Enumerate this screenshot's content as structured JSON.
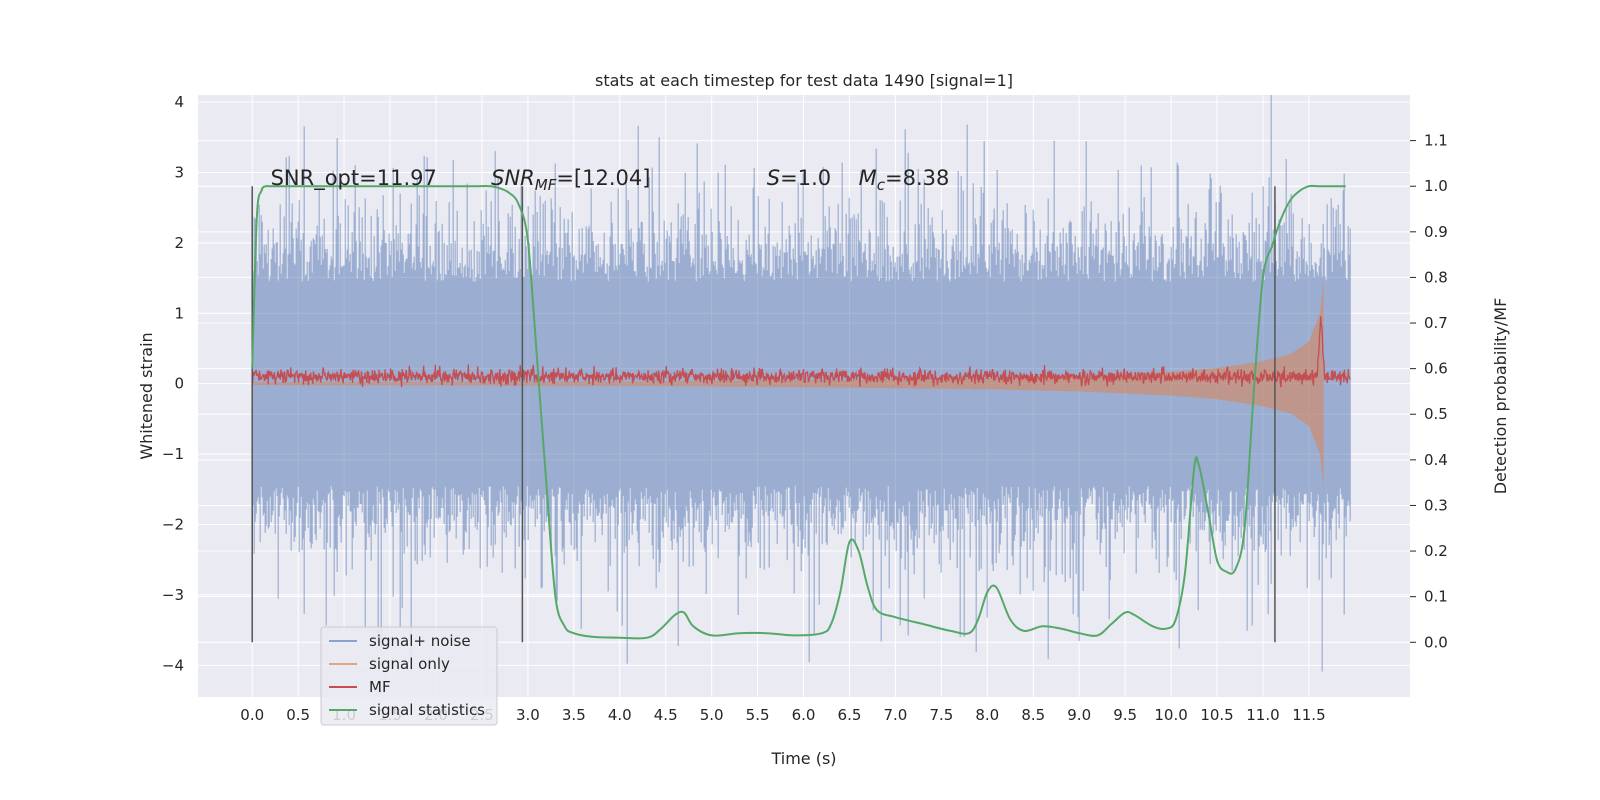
{
  "chart_data": {
    "type": "line",
    "title": "stats at each timestep for test data 1490 [signal=1]",
    "xlabel": "Time (s)",
    "ylabel": "Whitened strain",
    "y2label": "Detection probability/MF",
    "xlim": [
      -0.59,
      12.6
    ],
    "ylim": [
      -4.45,
      4.1
    ],
    "y2lim": [
      -0.12,
      1.2
    ],
    "x_ticks": [
      "0.0",
      "0.5",
      "1.0",
      "1.5",
      "2.0",
      "2.5",
      "3.0",
      "3.5",
      "4.0",
      "4.5",
      "5.0",
      "5.5",
      "6.0",
      "6.5",
      "7.0",
      "7.5",
      "8.0",
      "8.5",
      "9.0",
      "9.5",
      "10.0",
      "10.5",
      "11.0",
      "11.5"
    ],
    "y_ticks": [
      "4",
      "3",
      "2",
      "1",
      "0",
      "−1",
      "−2",
      "−3",
      "−4"
    ],
    "y2_ticks": [
      "1.1",
      "1.0",
      "0.9",
      "0.8",
      "0.7",
      "0.6",
      "0.5",
      "0.4",
      "0.3",
      "0.2",
      "0.1",
      "0.0"
    ],
    "grid": true,
    "legend_position": "lower-left",
    "colors": {
      "background": "#eaeaf2",
      "grid": "#ffffff",
      "signal_noise": "#4c72b0",
      "signal_only": "#dd8452",
      "mf": "#c44e52",
      "signal_statistics": "#55a868",
      "vlines": "#555555"
    },
    "annotations": [
      {
        "text": "SNR_opt=11.97",
        "x": 0.2
      },
      {
        "text": "SNR",
        "sub": "MF",
        "rest": "=[12.04]",
        "x": 2.6,
        "italic": true
      },
      {
        "text": "S",
        "rest": "=1.0",
        "x": 5.6,
        "italic": true
      },
      {
        "text": "M",
        "sub": "c",
        "rest": "=8.38",
        "x": 6.6,
        "italic": true
      }
    ],
    "vertical_lines": [
      0.0,
      2.94,
      11.13
    ],
    "series": [
      {
        "name": "signal+ noise",
        "description": "whitened noise with embedded signal, roughly within ±2 with spikes to ±3.7",
        "x_range": [
          0.0,
          11.95
        ],
        "band": [
          -2.2,
          2.2
        ],
        "extremes": [
          -4.1,
          3.7
        ]
      },
      {
        "name": "signal only",
        "envelope_x": [
          0.0,
          4.0,
          6.0,
          8.0,
          9.0,
          10.0,
          10.5,
          11.0,
          11.3,
          11.5,
          11.62,
          11.66
        ],
        "envelope_amp": [
          0.02,
          0.03,
          0.05,
          0.08,
          0.11,
          0.17,
          0.22,
          0.32,
          0.42,
          0.6,
          1.0,
          1.5
        ]
      },
      {
        "name": "MF",
        "description": "matched filter output oscillating around 0.1 with peak ~1.0 near 11.63 s",
        "x_range": [
          0.0,
          11.95
        ],
        "center": 0.1,
        "amp": 0.1,
        "peak": {
          "x": 11.63,
          "y": 1.0
        }
      },
      {
        "name": "signal statistics",
        "axis": "right",
        "x": [
          0.0,
          0.05,
          0.1,
          0.15,
          0.2,
          0.5,
          1.0,
          2.0,
          2.4,
          2.6,
          2.7,
          2.8,
          2.9,
          3.0,
          3.1,
          3.2,
          3.3,
          3.4,
          3.5,
          3.7,
          4.0,
          4.3,
          4.45,
          4.6,
          4.7,
          4.8,
          5.0,
          5.3,
          5.6,
          5.9,
          6.2,
          6.3,
          6.4,
          6.5,
          6.6,
          6.7,
          6.8,
          7.0,
          7.3,
          7.6,
          7.8,
          7.9,
          8.0,
          8.1,
          8.25,
          8.4,
          8.6,
          8.8,
          9.0,
          9.2,
          9.35,
          9.5,
          9.6,
          9.8,
          9.95,
          10.05,
          10.15,
          10.25,
          10.3,
          10.4,
          10.5,
          10.6,
          10.7,
          10.8,
          10.9,
          11.0,
          11.1,
          11.2,
          11.3,
          11.4,
          11.5,
          11.6,
          11.7,
          11.9
        ],
        "y": [
          0.6,
          0.93,
          0.99,
          1.0,
          1.0,
          1.0,
          1.0,
          1.0,
          1.0,
          1.0,
          0.995,
          0.985,
          0.96,
          0.88,
          0.62,
          0.35,
          0.1,
          0.035,
          0.02,
          0.012,
          0.01,
          0.01,
          0.03,
          0.06,
          0.065,
          0.035,
          0.015,
          0.02,
          0.02,
          0.015,
          0.02,
          0.04,
          0.11,
          0.22,
          0.2,
          0.12,
          0.07,
          0.055,
          0.04,
          0.025,
          0.02,
          0.05,
          0.11,
          0.12,
          0.05,
          0.025,
          0.035,
          0.03,
          0.02,
          0.015,
          0.04,
          0.065,
          0.06,
          0.035,
          0.03,
          0.05,
          0.15,
          0.38,
          0.39,
          0.29,
          0.18,
          0.155,
          0.16,
          0.25,
          0.55,
          0.8,
          0.87,
          0.93,
          0.97,
          0.99,
          1.0,
          1.0,
          1.0,
          1.0
        ]
      }
    ]
  }
}
